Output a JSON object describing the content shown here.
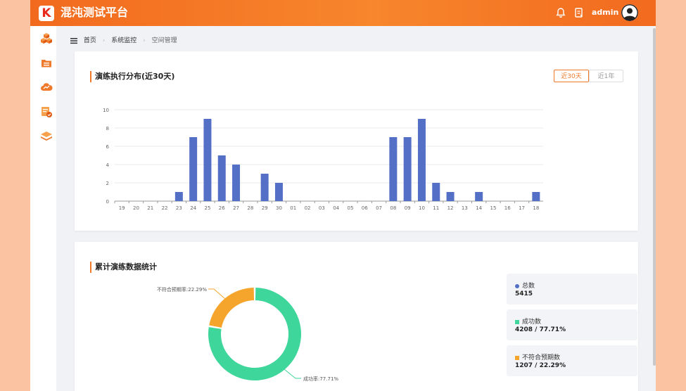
{
  "header": {
    "logo_letter": "K",
    "title": "混沌测试平台",
    "username": "admin",
    "icons": [
      "bell-icon",
      "document-icon",
      "avatar"
    ]
  },
  "sidebar": {
    "items": [
      "cubes-icon",
      "folder-icon",
      "cloud-chart-icon",
      "report-check-icon",
      "layers-icon"
    ]
  },
  "breadcrumb": {
    "items": [
      "首页",
      "系统监控",
      "空间管理"
    ]
  },
  "exec_card": {
    "title": "演练执行分布(近30天)",
    "tabs": [
      {
        "label": "近30天",
        "active": true
      },
      {
        "label": "近1年",
        "active": false
      }
    ]
  },
  "chart_data": {
    "type": "bar",
    "categories": [
      "19",
      "20",
      "21",
      "22",
      "23",
      "24",
      "25",
      "26",
      "27",
      "28",
      "29",
      "30",
      "01",
      "02",
      "03",
      "04",
      "05",
      "06",
      "07",
      "08",
      "09",
      "10",
      "11",
      "12",
      "13",
      "14",
      "15",
      "16",
      "17",
      "18"
    ],
    "values": [
      0,
      0,
      0,
      0,
      1,
      7,
      9,
      5,
      4,
      0,
      3,
      2,
      0,
      0,
      0,
      0,
      0,
      0,
      0,
      7,
      7,
      9,
      2,
      1,
      0,
      1,
      0,
      0,
      0,
      1
    ],
    "yticks": [
      0,
      2,
      4,
      6,
      8,
      10
    ],
    "ylim": [
      0,
      10
    ],
    "bar_color": "#5470c6",
    "grid": true
  },
  "stats_card": {
    "title": "累计演练数据统计",
    "donut": {
      "type": "pie",
      "slices": [
        {
          "label": "成功率",
          "value": 77.71,
          "color": "#3fd69b",
          "text": "成功率:77.71%"
        },
        {
          "label": "不符合预期率",
          "value": 22.29,
          "color": "#f5a52c",
          "text": "不符合预期率:22.29%"
        }
      ]
    },
    "items": [
      {
        "label": "总数",
        "value": "5415",
        "color": "#5470c6"
      },
      {
        "label": "成功数",
        "value": "4208 / 77.71%",
        "color": "#3fd69b"
      },
      {
        "label": "不符合预期数",
        "value": "1207 / 22.29%",
        "color": "#f5a52c"
      }
    ]
  }
}
